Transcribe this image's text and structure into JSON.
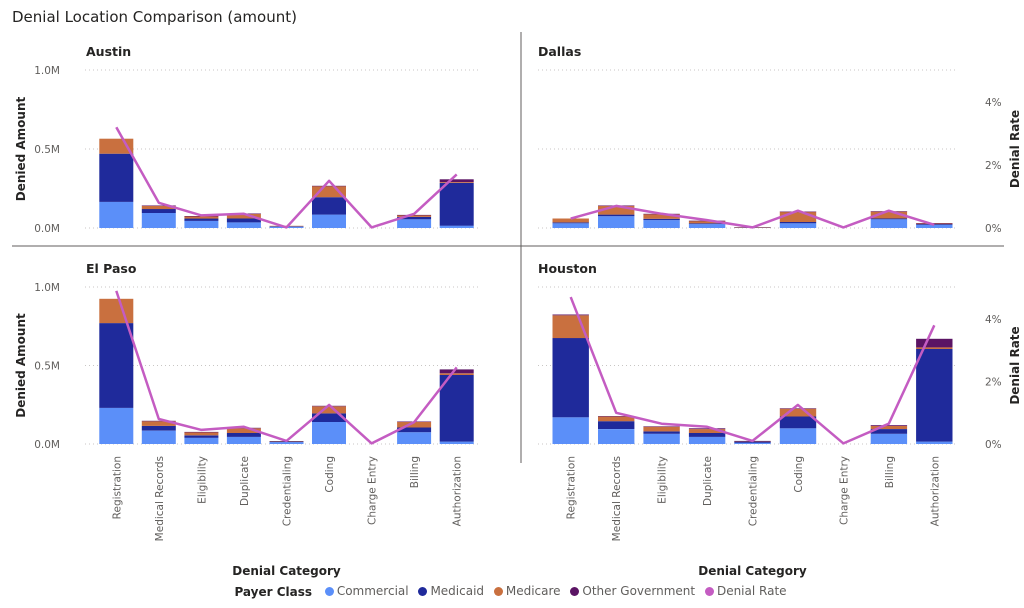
{
  "title": "Denial Location Comparison (amount)",
  "legend": {
    "title": "Payer Class",
    "items": [
      {
        "label": "Commercial",
        "color": "#5b8ff9"
      },
      {
        "label": "Medicaid",
        "color": "#1f2a9b"
      },
      {
        "label": "Medicare",
        "color": "#c9703f"
      },
      {
        "label": "Other Government",
        "color": "#5b1464"
      },
      {
        "label": "Denial Rate",
        "color": "#c45cc2"
      }
    ]
  },
  "chart_data": {
    "type": "bar",
    "stacked": true,
    "categories": [
      "Registration",
      "Medical Records",
      "Eligibility",
      "Duplicate",
      "Credentialing",
      "Coding",
      "Charge Entry",
      "Billing",
      "Authorization"
    ],
    "xlabel": "Denial Category",
    "ylabel": "Denied Amount",
    "y2label": "Denial Rate",
    "ylim": [
      0,
      1000000
    ],
    "y2lim": [
      0,
      0.05
    ],
    "yticks": [
      "0.0M",
      "0.5M",
      "1.0M"
    ],
    "y2ticks": [
      "0%",
      "2%",
      "4%"
    ],
    "grid": true,
    "legend_position": "bottom",
    "panels": [
      {
        "name": "Austin",
        "series": [
          {
            "name": "Commercial",
            "values": [
              165000,
              95000,
              45000,
              35000,
              8000,
              85000,
              0,
              55000,
              15000
            ]
          },
          {
            "name": "Medicaid",
            "values": [
              305000,
              25000,
              15000,
              25000,
              4000,
              110000,
              0,
              15000,
              270000
            ]
          },
          {
            "name": "Medicare",
            "values": [
              95000,
              20000,
              15000,
              30000,
              2000,
              70000,
              0,
              12000,
              5000
            ]
          },
          {
            "name": "Other Government",
            "values": [
              0,
              3000,
              1000,
              2000,
              0,
              2000,
              0,
              1000,
              18000
            ]
          }
        ],
        "rate": [
          0.032,
          0.008,
          0.004,
          0.0045,
          0.0002,
          0.015,
          0.0002,
          0.0045,
          0.017
        ]
      },
      {
        "name": "Dallas",
        "series": [
          {
            "name": "Commercial",
            "values": [
              30000,
              75000,
              50000,
              25000,
              3000,
              30000,
              0,
              55000,
              20000
            ]
          },
          {
            "name": "Medicaid",
            "values": [
              5000,
              10000,
              8000,
              5000,
              1000,
              8000,
              0,
              5000,
              5000
            ]
          },
          {
            "name": "Medicare",
            "values": [
              25000,
              55000,
              30000,
              15000,
              1000,
              65000,
              0,
              45000,
              5000
            ]
          },
          {
            "name": "Other Government",
            "values": [
              0,
              3000,
              2000,
              1000,
              0,
              1000,
              0,
              1000,
              1000
            ]
          }
        ],
        "rate": [
          0.003,
          0.007,
          0.0045,
          0.0025,
          0.0002,
          0.0055,
          0.0002,
          0.0055,
          0.001
        ]
      },
      {
        "name": "El Paso",
        "series": [
          {
            "name": "Commercial",
            "values": [
              230000,
              85000,
              40000,
              45000,
              12000,
              140000,
              0,
              75000,
              15000
            ]
          },
          {
            "name": "Medicaid",
            "values": [
              540000,
              30000,
              15000,
              25000,
              5000,
              55000,
              0,
              30000,
              425000
            ]
          },
          {
            "name": "Medicare",
            "values": [
              155000,
              30000,
              20000,
              30000,
              2000,
              45000,
              0,
              35000,
              10000
            ]
          },
          {
            "name": "Other Government",
            "values": [
              0,
              3000,
              2000,
              3000,
              0,
              3000,
              0,
              3000,
              25000
            ]
          }
        ],
        "rate": [
          0.049,
          0.008,
          0.0045,
          0.0055,
          0.001,
          0.0125,
          0.0002,
          0.007,
          0.0245
        ]
      },
      {
        "name": "Houston",
        "series": [
          {
            "name": "Commercial",
            "values": [
              170000,
              95000,
              65000,
              45000,
              8000,
              100000,
              0,
              65000,
              15000
            ]
          },
          {
            "name": "Medicaid",
            "values": [
              505000,
              50000,
              15000,
              25000,
              8000,
              75000,
              0,
              30000,
              590000
            ]
          },
          {
            "name": "Medicare",
            "values": [
              145000,
              30000,
              30000,
              25000,
              2000,
              50000,
              0,
              20000,
              10000
            ]
          },
          {
            "name": "Other Government",
            "values": [
              5000,
              3000,
              3000,
              5000,
              2000,
              3000,
              0,
              5000,
              55000
            ]
          }
        ],
        "rate": [
          0.047,
          0.01,
          0.0065,
          0.0055,
          0.001,
          0.0125,
          0.0002,
          0.0065,
          0.038
        ]
      }
    ]
  }
}
